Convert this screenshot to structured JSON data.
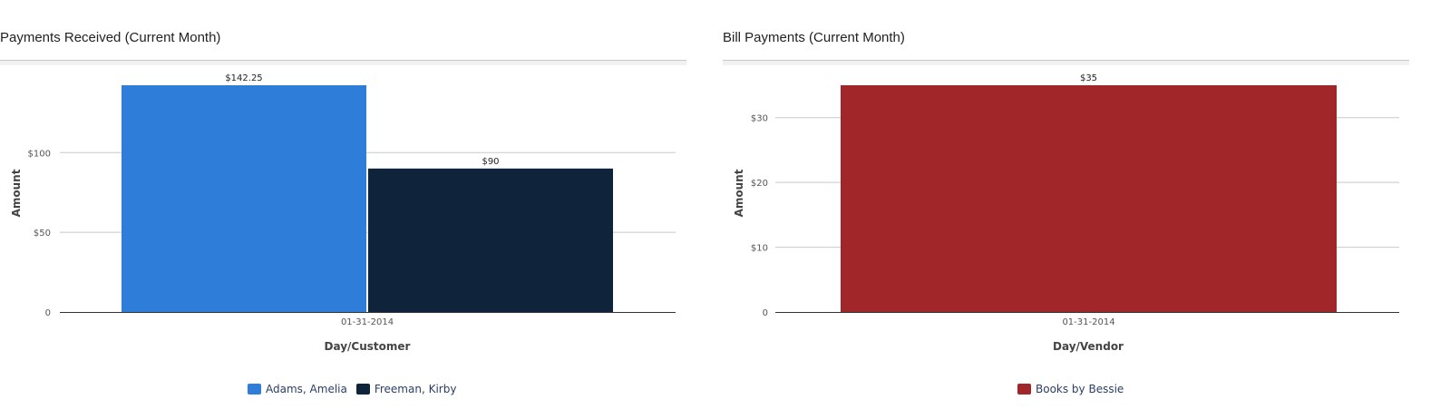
{
  "chart_data": [
    {
      "type": "bar",
      "title": "Payments Received (Current Month)",
      "categories": [
        "01-31-2014"
      ],
      "xlabel": "Day/Customer",
      "ylabel": "Amount",
      "ylim": [
        0,
        142.25
      ],
      "yticks": [
        0,
        50,
        100
      ],
      "ytick_labels": [
        "0",
        "$50",
        "$100"
      ],
      "grid": true,
      "legend_position": "bottom",
      "series": [
        {
          "name": "Adams, Amelia",
          "values": [
            142.25
          ],
          "label": "$142.25",
          "color": "#2e7ed9"
        },
        {
          "name": "Freeman, Kirby",
          "values": [
            90
          ],
          "label": "$90",
          "color": "#0f233a"
        }
      ]
    },
    {
      "type": "bar",
      "title": "Bill Payments (Current Month)",
      "categories": [
        "01-31-2014"
      ],
      "xlabel": "Day/Vendor",
      "ylabel": "Amount",
      "ylim": [
        0,
        35
      ],
      "yticks": [
        0,
        10,
        20,
        30
      ],
      "ytick_labels": [
        "0",
        "$10",
        "$20",
        "$30"
      ],
      "grid": true,
      "legend_position": "bottom",
      "series": [
        {
          "name": "Books by Bessie",
          "values": [
            35
          ],
          "label": "$35",
          "color": "#a0262a"
        }
      ]
    }
  ]
}
